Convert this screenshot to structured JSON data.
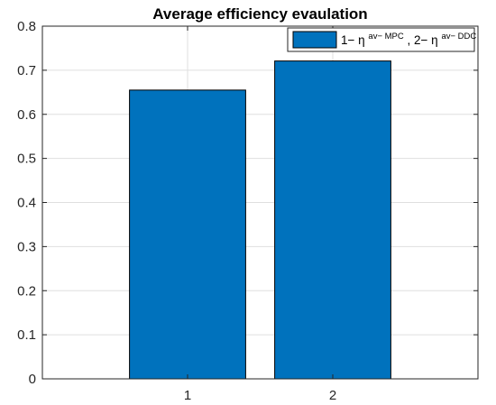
{
  "chart_data": {
    "type": "bar",
    "title": "Average efficiency evaulation",
    "xlabel": "",
    "ylabel": "",
    "categories": [
      "1",
      "2"
    ],
    "series": [
      {
        "name": "1− η^{av− MPC}, 2− η^{av− DDC}",
        "values": [
          0.655,
          0.721
        ]
      }
    ],
    "x_ticks": [
      "1",
      "2"
    ],
    "xlim": [
      0,
      3
    ],
    "ylim": [
      0,
      0.8
    ],
    "y_ticks": [
      "0",
      "0.1",
      "0.2",
      "0.3",
      "0.4",
      "0.5",
      "0.6",
      "0.7",
      "0.8"
    ],
    "grid": true,
    "legend_position": "top-right",
    "bar_color": "#0072bd",
    "bar_edge_color": "#000000"
  },
  "legend": {
    "parts": [
      {
        "text": "1− η",
        "sup": "av− MPC"
      },
      {
        "text": ", 2− η",
        "sup": "av− DDC"
      }
    ]
  }
}
